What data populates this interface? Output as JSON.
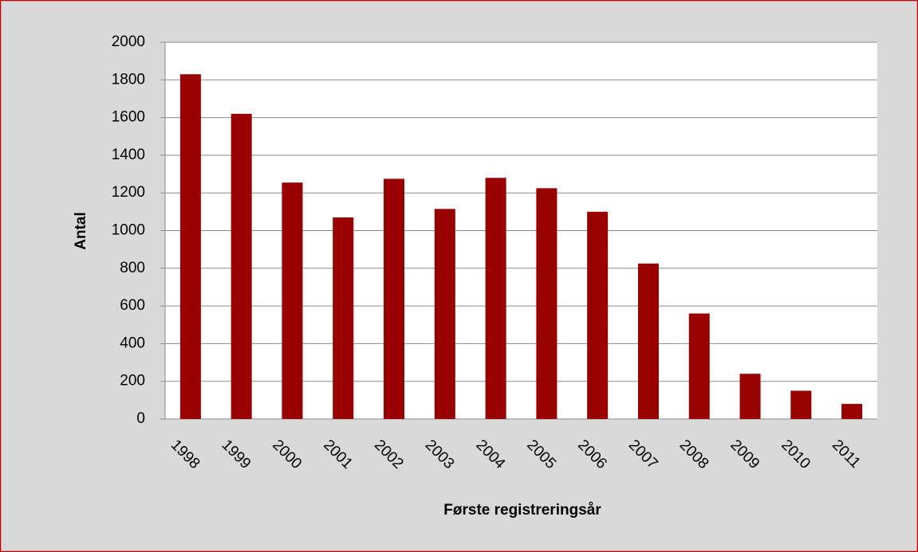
{
  "chart_data": {
    "type": "bar",
    "categories": [
      "1998",
      "1999",
      "2000",
      "2001",
      "2002",
      "2003",
      "2004",
      "2005",
      "2006",
      "2007",
      "2008",
      "2009",
      "2010",
      "2011"
    ],
    "values": [
      1830,
      1620,
      1255,
      1070,
      1275,
      1115,
      1280,
      1225,
      1100,
      825,
      560,
      240,
      150,
      80
    ],
    "color": "#990000",
    "ylim": [
      0,
      2000
    ],
    "yticks": [
      0,
      200,
      400,
      600,
      800,
      1000,
      1200,
      1400,
      1600,
      1800,
      2000
    ],
    "grid": true,
    "xlabel": "Første registreringsår",
    "ylabel": "Antal"
  }
}
